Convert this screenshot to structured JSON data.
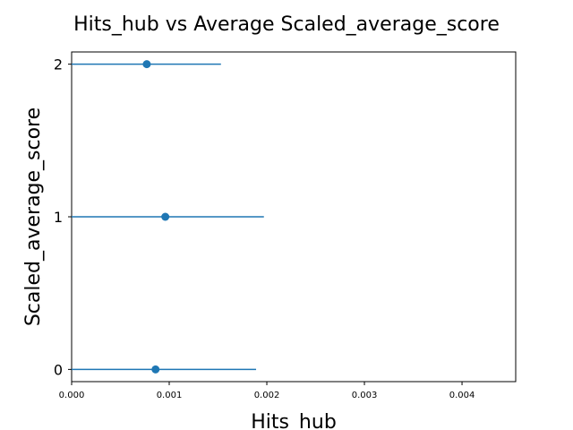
{
  "chart_data": {
    "type": "scatter",
    "title": "Hits_hub vs Average Scaled_average_score",
    "xlabel": "Hits_hub",
    "ylabel": "Scaled_average_score",
    "xlim": [
      0,
      0.00455
    ],
    "ylim": [
      -0.08,
      2.08
    ],
    "xticks": [
      0.0,
      0.001,
      0.002,
      0.003,
      0.004
    ],
    "xtick_labels": [
      "0.000",
      "0.001",
      "0.002",
      "0.003",
      "0.004"
    ],
    "yticks": [
      0,
      1,
      2
    ],
    "ytick_labels": [
      "0",
      "1",
      "2"
    ],
    "grid": false,
    "series": [
      {
        "color": "#1f77b4",
        "points": [
          {
            "y": 0,
            "x": 0.00086,
            "xerr_low": 0.0,
            "xerr_high": 0.00189
          },
          {
            "y": 1,
            "x": 0.00096,
            "xerr_low": 0.0,
            "xerr_high": 0.00197
          },
          {
            "y": 2,
            "x": 0.00077,
            "xerr_low": 0.0,
            "xerr_high": 0.00153
          }
        ]
      }
    ]
  }
}
